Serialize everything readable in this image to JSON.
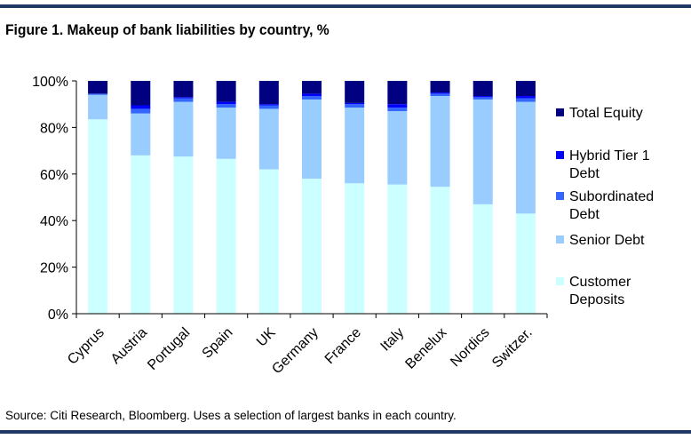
{
  "figure": {
    "title": "Figure 1.  Makeup of bank liabilities by country, %",
    "source": "Source: Citi Research, Bloomberg. Uses a selection of largest banks in each country."
  },
  "chart_data": {
    "type": "bar",
    "stacked": true,
    "title": "Figure 1.  Makeup of bank liabilities by country, %",
    "xlabel": "",
    "ylabel": "",
    "ylim": [
      0,
      100
    ],
    "yticks": [
      "0%",
      "20%",
      "40%",
      "60%",
      "80%",
      "100%"
    ],
    "grid": false,
    "legend_position": "right",
    "categories": [
      "Cyprus",
      "Austria",
      "Portugal",
      "Spain",
      "UK",
      "Germany",
      "France",
      "Italy",
      "Benelux",
      "Nordics",
      "Switzer."
    ],
    "series": [
      {
        "name": "Customer Deposits",
        "color": "#ccffff",
        "values": [
          83.5,
          68,
          67.5,
          66.5,
          62,
          58,
          56,
          55.5,
          54.5,
          47,
          43
        ]
      },
      {
        "name": "Senior Debt",
        "color": "#99ccff",
        "values": [
          10.5,
          18,
          23.5,
          22,
          26,
          34,
          32.5,
          31.5,
          39,
          45,
          48
        ]
      },
      {
        "name": "Subordinated Debt",
        "color": "#3366ff",
        "values": [
          0.5,
          2,
          1.5,
          1.5,
          1.5,
          1.5,
          1.5,
          1.5,
          1,
          1,
          1.5
        ]
      },
      {
        "name": "Hybrid Tier 1 Debt",
        "color": "#0000ff",
        "values": [
          0,
          1.5,
          0.5,
          1,
          0.5,
          1,
          0.5,
          1.5,
          0.5,
          0.5,
          1
        ]
      },
      {
        "name": "Total Equity",
        "color": "#000080",
        "values": [
          5.5,
          10.5,
          7,
          9,
          10,
          5.5,
          9.5,
          10,
          5,
          6.5,
          6.5
        ]
      }
    ],
    "legend": [
      {
        "series": "Total Equity",
        "lines": [
          "Total Equity"
        ]
      },
      {
        "series": "Hybrid Tier 1 Debt",
        "lines": [
          "Hybrid Tier 1",
          "Debt"
        ]
      },
      {
        "series": "Subordinated Debt",
        "lines": [
          "Subordinated",
          "Debt"
        ]
      },
      {
        "series": "Senior Debt",
        "lines": [
          "Senior Debt"
        ]
      },
      {
        "series": "Customer Deposits",
        "lines": [
          "Customer",
          "Deposits"
        ]
      }
    ]
  }
}
